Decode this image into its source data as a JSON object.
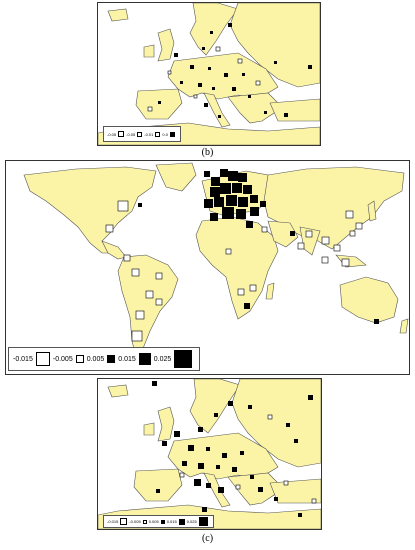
{
  "colors": {
    "land": "#fbf4a6",
    "border": "#555555",
    "sea": "#ffffff",
    "negative": "#ffffff",
    "positive": "#000000"
  },
  "panel_b": {
    "caption": "(b)",
    "legend": [
      "-0.05",
      "-0.05",
      "-0.01",
      "0.0"
    ]
  },
  "panel_c_world": {
    "legend": [
      "-0.015",
      "-0.005",
      "0.005",
      "0.015",
      "0.025"
    ]
  },
  "panel_c_europe": {
    "caption": "(c)",
    "legend": [
      "-0.015",
      "-0.005",
      "0.005",
      "0.015",
      "0.025"
    ]
  }
}
